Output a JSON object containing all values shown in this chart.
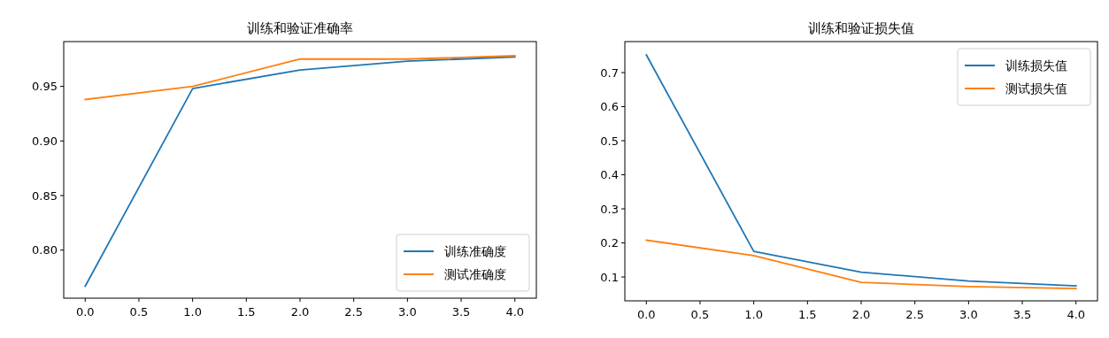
{
  "chart_data": [
    {
      "type": "line",
      "title": "训练和验证准确率",
      "x": [
        0,
        1,
        2,
        3,
        4
      ],
      "series": [
        {
          "name": "训练准确度",
          "color": "#1f77b4",
          "values": [
            0.767,
            0.948,
            0.965,
            0.973,
            0.977
          ]
        },
        {
          "name": "测试准确度",
          "color": "#ff7f0e",
          "values": [
            0.938,
            0.95,
            0.975,
            0.975,
            0.978
          ]
        }
      ],
      "xlim": [
        -0.2,
        4.2
      ],
      "ylim": [
        0.756,
        0.991
      ],
      "xticks": [
        {
          "value": 0,
          "label": "0.0"
        },
        0.5,
        {
          "value": 1,
          "label": "1.0"
        },
        1.5,
        {
          "value": 2,
          "label": "2.0"
        },
        2.5,
        {
          "value": 3,
          "label": "3.0"
        },
        3.5,
        {
          "value": 4,
          "label": "4.0"
        }
      ],
      "yticks": [
        {
          "value": 0.8,
          "label": "0.80"
        },
        0.85,
        {
          "value": 0.9,
          "label": "0.90"
        },
        0.95
      ],
      "legend": "bottom right",
      "grid": false,
      "marker": "none",
      "line_style": "solid"
    },
    {
      "type": "line",
      "title": "训练和验证损失值",
      "x": [
        0,
        1,
        2,
        3,
        4
      ],
      "series": [
        {
          "name": "训练损失值",
          "color": "#1f77b4",
          "values": [
            0.752,
            0.175,
            0.114,
            0.088,
            0.074
          ]
        },
        {
          "name": "测试损失值",
          "color": "#ff7f0e",
          "values": [
            0.208,
            0.163,
            0.084,
            0.072,
            0.066
          ]
        }
      ],
      "xlim": [
        -0.2,
        4.2
      ],
      "ylim": [
        0.03,
        0.791
      ],
      "xticks": [
        {
          "value": 0,
          "label": "0.0"
        },
        0.5,
        {
          "value": 1,
          "label": "1.0"
        },
        1.5,
        {
          "value": 2,
          "label": "2.0"
        },
        2.5,
        {
          "value": 3,
          "label": "3.0"
        },
        3.5,
        {
          "value": 4,
          "label": "4.0"
        }
      ],
      "yticks": [
        0.1,
        0.2,
        0.3,
        0.4,
        0.5,
        0.6,
        0.7
      ],
      "legend": "top right",
      "grid": false,
      "marker": "none",
      "line_style": "solid"
    }
  ]
}
